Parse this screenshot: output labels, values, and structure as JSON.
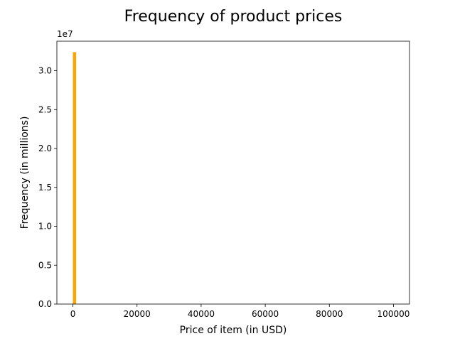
{
  "chart_data": {
    "type": "bar",
    "title": "Frequency of product prices",
    "xlabel": "Price of item (in USD)",
    "ylabel": "Frequency (in millions)",
    "y_offset_label": "1e7",
    "xlim": [
      -5000,
      105000
    ],
    "ylim": [
      0,
      33800000
    ],
    "x_ticks": [
      0,
      20000,
      40000,
      60000,
      80000,
      100000
    ],
    "x_tick_labels": [
      "0",
      "20000",
      "40000",
      "60000",
      "80000",
      "100000"
    ],
    "y_ticks": [
      0,
      5000000,
      10000000,
      15000000,
      20000000,
      25000000,
      30000000
    ],
    "y_tick_labels": [
      "0.0",
      "0.5",
      "1.0",
      "1.5",
      "2.0",
      "2.5",
      "3.0"
    ],
    "grid": false,
    "legend": "none",
    "bar_color": "#ffa500",
    "bins": [
      {
        "x_start": 0,
        "x_end": 1000,
        "value": 32400000
      }
    ]
  }
}
